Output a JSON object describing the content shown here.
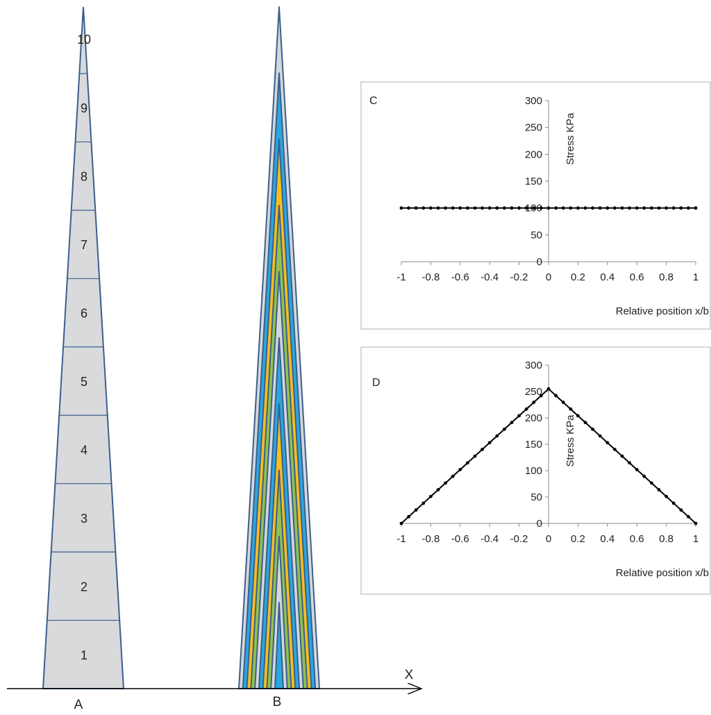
{
  "panel_labels": {
    "a": "A",
    "b": "B",
    "c": "C",
    "d": "D"
  },
  "x_axis_label": "X",
  "segments": {
    "count": 10,
    "labels": [
      "1",
      "2",
      "3",
      "4",
      "5",
      "6",
      "7",
      "8",
      "9",
      "10"
    ]
  },
  "colors": {
    "outline": "#3a5f8e",
    "segment_fill": "#d9dadc",
    "blue": "#2aa7df",
    "yellow": "#fbbc1c",
    "green": "#90c24e",
    "gray": "#d6d7d9",
    "chart_line": "#000000",
    "chart_frame": "#b0b0b0"
  },
  "nested_layers": {
    "count": 10,
    "color_cycle": [
      "gray",
      "blue",
      "yellow",
      "green"
    ]
  },
  "chart_data": [
    {
      "panel": "C",
      "type": "line",
      "ylabel": "Stress KPa",
      "xlabel": "Relative position x/b",
      "xlim": [
        -1,
        1
      ],
      "ylim": [
        0,
        300
      ],
      "x_ticks": [
        "-1",
        "-0.8",
        "-0.6",
        "-0.4",
        "-0.2",
        "0",
        "0.2",
        "0.4",
        "0.6",
        "0.8",
        "1"
      ],
      "y_ticks": [
        "0",
        "50",
        "100",
        "150",
        "200",
        "250",
        "300"
      ],
      "series": [
        {
          "shape": "constant",
          "value": 100,
          "points": 41
        }
      ]
    },
    {
      "panel": "D",
      "type": "line",
      "ylabel": "Stress KPa",
      "xlabel": "Relative position x/b",
      "xlim": [
        -1,
        1
      ],
      "ylim": [
        0,
        300
      ],
      "x_ticks": [
        "-1",
        "-0.8",
        "-0.6",
        "-0.4",
        "-0.2",
        "0",
        "0.2",
        "0.4",
        "0.6",
        "0.8",
        "1"
      ],
      "y_ticks": [
        "0",
        "50",
        "100",
        "150",
        "200",
        "250",
        "300"
      ],
      "series": [
        {
          "shape": "triangular",
          "peak": 255,
          "points": 41
        }
      ]
    }
  ]
}
